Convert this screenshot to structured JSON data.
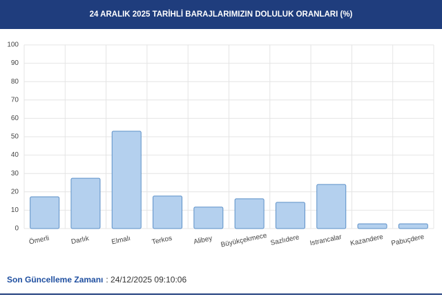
{
  "chart_data": {
    "type": "bar",
    "title": "24 ARALIK 2025 TARİHLİ BARAJLARIMIZIN DOLULUK ORANLARI (%)",
    "categories": [
      "Ömerli",
      "Darlık",
      "Elmalı",
      "Terkos",
      "Alibey",
      "Büyükçekmece",
      "Sazlıdere",
      "Istrancalar",
      "Kazandere",
      "Pabuçdere"
    ],
    "values": [
      17.3,
      27.4,
      53,
      17.7,
      11.7,
      16.2,
      14.3,
      24,
      2.6,
      2.6
    ],
    "color": "#b4d0ee",
    "ylim": [
      0,
      100
    ],
    "yticks": [
      0,
      10,
      20,
      30,
      40,
      50,
      60,
      70,
      80,
      90,
      100
    ],
    "grid": true
  },
  "footer": {
    "label": "Son Güncelleme Zamanı",
    "value": ": 24/12/2025 09:10:06"
  }
}
